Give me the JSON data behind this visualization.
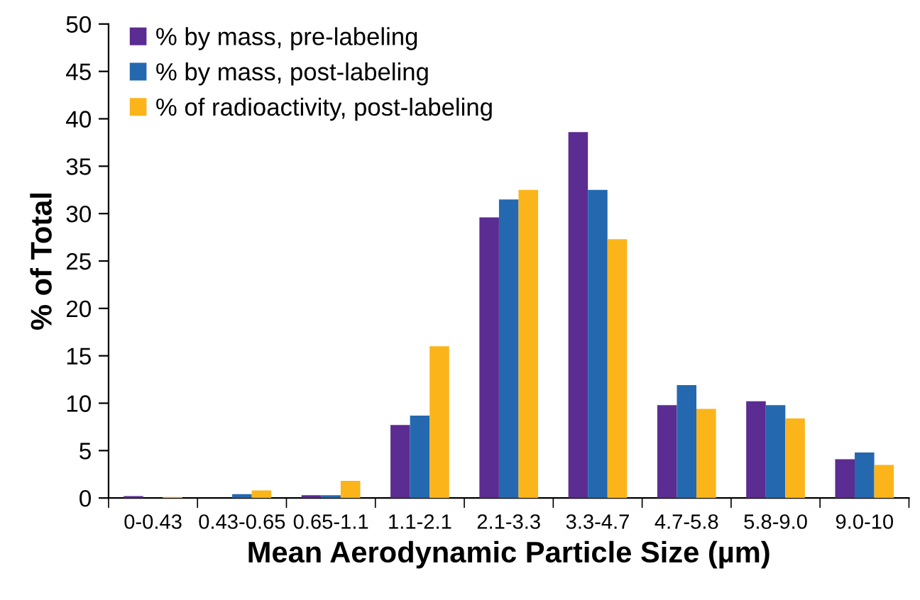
{
  "chart_data": {
    "type": "bar",
    "xlabel": "Mean Aerodynamic Particle Size (µm)",
    "ylabel": "% of Total",
    "categories": [
      "0-0.43",
      "0.43-0.65",
      "0.65-1.1",
      "1.1-2.1",
      "2.1-3.3",
      "3.3-4.7",
      "4.7-5.8",
      "5.8-9.0",
      "9.0-10"
    ],
    "series": [
      {
        "name": "% by mass, pre-labeling",
        "color": "#5b2c91",
        "values": [
          0.2,
          0,
          0.3,
          7.7,
          29.6,
          38.6,
          9.8,
          10.2,
          4.1
        ]
      },
      {
        "name": "% by mass, post-labeling",
        "color": "#2468b0",
        "values": [
          0,
          0.4,
          0.3,
          8.7,
          31.5,
          32.5,
          11.9,
          9.8,
          4.8
        ]
      },
      {
        "name": "% of radioactivity, post-labeling",
        "color": "#fbb41a",
        "values": [
          0.1,
          0.8,
          1.8,
          16,
          32.5,
          27.3,
          9.4,
          8.4,
          3.5
        ]
      }
    ],
    "ylim": [
      0,
      50
    ],
    "yticks": [
      0,
      5,
      10,
      15,
      20,
      25,
      30,
      35,
      40,
      45,
      50
    ],
    "grid": false,
    "legend": "top left"
  }
}
